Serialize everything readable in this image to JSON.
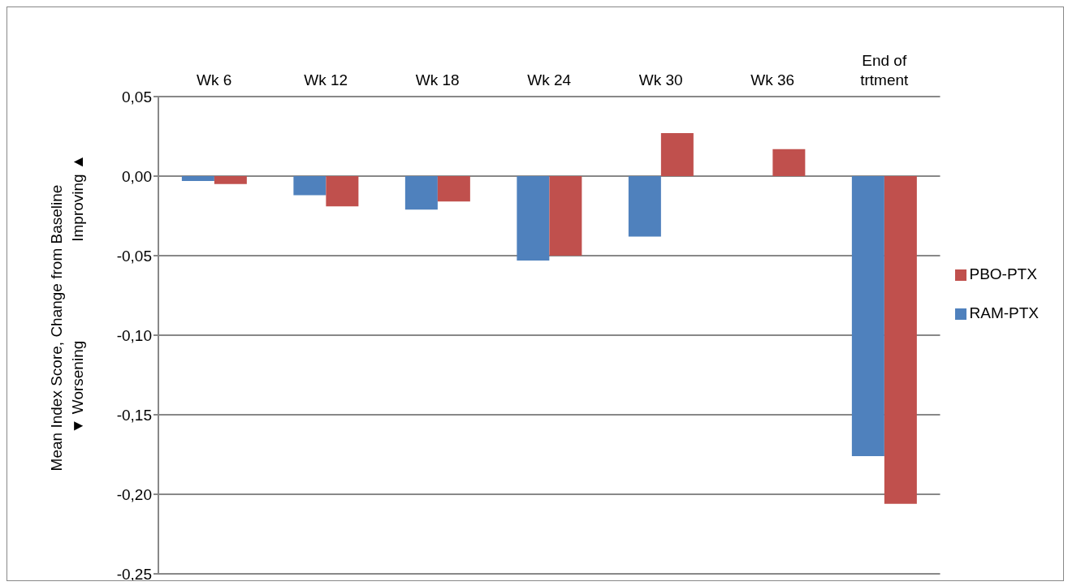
{
  "chart_data": {
    "type": "bar",
    "ylabel": "Mean Index Score, Change from Baseline",
    "annotations": [
      "▼ Worsening",
      "Improving ▲"
    ],
    "categories": [
      "Wk 6",
      "Wk 12",
      "Wk 18",
      "Wk 24",
      "Wk 30",
      "Wk 36",
      "End of\ntrtment"
    ],
    "series": [
      {
        "name": "RAM-PTX",
        "color": "#4f81bd",
        "values": [
          -0.003,
          -0.012,
          -0.021,
          -0.053,
          -0.038,
          null,
          -0.176
        ]
      },
      {
        "name": "PBO-PTX",
        "color": "#c0504d",
        "values": [
          -0.005,
          -0.019,
          -0.016,
          -0.05,
          0.027,
          0.017,
          -0.206
        ]
      }
    ],
    "ylim": [
      -0.25,
      0.05
    ],
    "yticks": [
      {
        "value": -0.25,
        "label": "-0,25"
      },
      {
        "value": -0.2,
        "label": "-0,20"
      },
      {
        "value": -0.15,
        "label": "-0,15"
      },
      {
        "value": -0.1,
        "label": "-0,10"
      },
      {
        "value": -0.05,
        "label": "-0,05"
      },
      {
        "value": 0,
        "label": "0,00"
      },
      {
        "value": 0.05,
        "label": "0,05"
      }
    ],
    "grid": "y",
    "legend": "right"
  }
}
